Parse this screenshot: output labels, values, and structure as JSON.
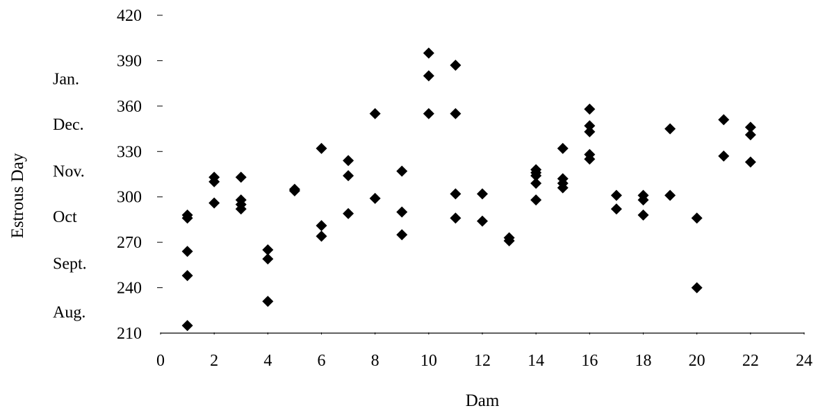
{
  "chart_data": {
    "type": "scatter",
    "xlabel": "Dam",
    "ylabel": "Estrous Day",
    "xlim": [
      0,
      24
    ],
    "ylim": [
      210,
      420
    ],
    "x_ticks": [
      0,
      2,
      4,
      6,
      8,
      10,
      12,
      14,
      16,
      18,
      20,
      22,
      24
    ],
    "y_ticks": [
      210,
      240,
      270,
      300,
      330,
      360,
      390,
      420
    ],
    "month_labels": [
      {
        "label": "Jan.",
        "y": 378
      },
      {
        "label": "Dec.",
        "y": 348
      },
      {
        "label": "Nov.",
        "y": 317
      },
      {
        "label": "Oct",
        "y": 287
      },
      {
        "label": "Sept.",
        "y": 256
      },
      {
        "label": "Aug.",
        "y": 224
      }
    ],
    "marker_color": "#000000",
    "series": [
      {
        "points": [
          [
            1,
            215
          ],
          [
            1,
            248
          ],
          [
            1,
            264
          ],
          [
            1,
            286
          ],
          [
            1,
            288
          ],
          [
            2,
            296
          ],
          [
            2,
            310
          ],
          [
            2,
            313
          ],
          [
            3,
            292
          ],
          [
            3,
            295
          ],
          [
            3,
            298
          ],
          [
            3,
            313
          ],
          [
            4,
            231
          ],
          [
            4,
            259
          ],
          [
            4,
            265
          ],
          [
            5,
            304
          ],
          [
            5,
            305
          ],
          [
            6,
            274
          ],
          [
            6,
            281
          ],
          [
            6,
            332
          ],
          [
            7,
            289
          ],
          [
            7,
            314
          ],
          [
            7,
            324
          ],
          [
            8,
            299
          ],
          [
            8,
            355
          ],
          [
            9,
            275
          ],
          [
            9,
            290
          ],
          [
            9,
            317
          ],
          [
            10,
            355
          ],
          [
            10,
            380
          ],
          [
            10,
            395
          ],
          [
            11,
            286
          ],
          [
            11,
            302
          ],
          [
            11,
            355
          ],
          [
            11,
            387
          ],
          [
            12,
            284
          ],
          [
            12,
            302
          ],
          [
            13,
            271
          ],
          [
            13,
            273
          ],
          [
            14,
            298
          ],
          [
            14,
            309
          ],
          [
            14,
            314
          ],
          [
            14,
            316
          ],
          [
            14,
            318
          ],
          [
            15,
            306
          ],
          [
            15,
            309
          ],
          [
            15,
            312
          ],
          [
            15,
            332
          ],
          [
            16,
            325
          ],
          [
            16,
            328
          ],
          [
            16,
            343
          ],
          [
            16,
            347
          ],
          [
            16,
            358
          ],
          [
            17,
            292
          ],
          [
            17,
            301
          ],
          [
            18,
            288
          ],
          [
            18,
            298
          ],
          [
            18,
            301
          ],
          [
            19,
            301
          ],
          [
            19,
            345
          ],
          [
            20,
            240
          ],
          [
            20,
            286
          ],
          [
            21,
            327
          ],
          [
            21,
            351
          ],
          [
            22,
            323
          ],
          [
            22,
            341
          ],
          [
            22,
            346
          ]
        ]
      }
    ]
  }
}
